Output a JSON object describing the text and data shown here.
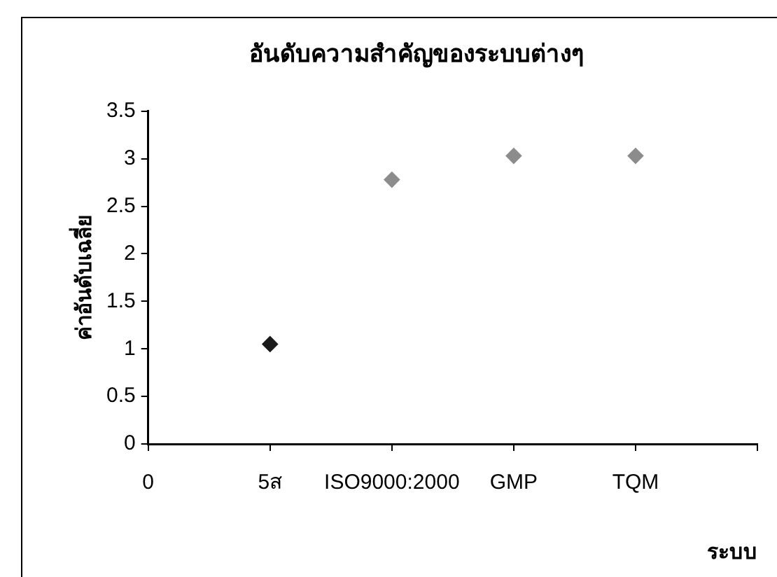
{
  "chart_data": {
    "type": "scatter",
    "title": "อันดับความสำคัญของระบบต่างๆ",
    "xlabel": "ระบบ",
    "ylabel": "ค่าอันดับเฉลี่ย",
    "categories": [
      "0",
      "5ส",
      "ISO9000:2000",
      "GMP",
      "TQM",
      null
    ],
    "series": [
      {
        "values": [
          null,
          1.05,
          2.78,
          3.03,
          3.03,
          null
        ],
        "colors": [
          "#1a1a1a",
          "#1a1a1a",
          "#8c8c8c",
          "#8c8c8c",
          "#8c8c8c",
          "#8c8c8c"
        ]
      }
    ],
    "ylim": [
      0,
      3.5
    ],
    "yticks": [
      0,
      0.5,
      1,
      1.5,
      2,
      2.5,
      3,
      3.5
    ],
    "grid": false,
    "legend": false,
    "marker": "diamond"
  }
}
